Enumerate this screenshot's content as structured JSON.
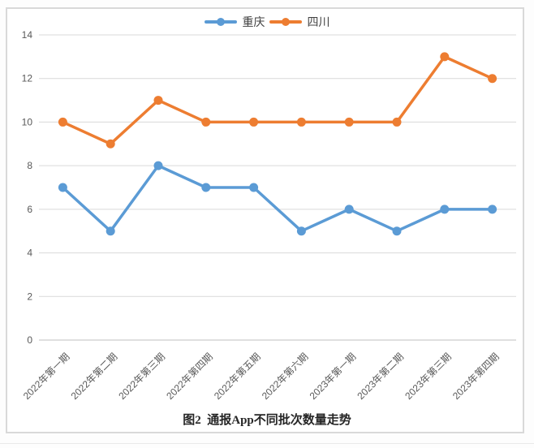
{
  "figure": {
    "caption": "图2  通报App不同批次数量走势"
  },
  "chart_data": {
    "type": "line",
    "categories": [
      "2022年第一期",
      "2022年第二期",
      "2022年第三期",
      "2022年第四期",
      "2022年第五期",
      "2022年第六期",
      "2023年第一期",
      "2023年第二期",
      "2023年第三期",
      "2023年第四期"
    ],
    "series": [
      {
        "key": "chongqing",
        "name": "重庆",
        "color": "#5B9BD5",
        "values": [
          7,
          5,
          8,
          7,
          7,
          5,
          6,
          5,
          6,
          6
        ]
      },
      {
        "key": "sichuan",
        "name": "四川",
        "color": "#ED7D31",
        "values": [
          10,
          9,
          11,
          10,
          10,
          10,
          10,
          10,
          13,
          12
        ]
      }
    ],
    "title": "",
    "xlabel": "",
    "ylabel": "",
    "ylim": [
      0,
      14
    ],
    "ytick_step": 2,
    "yticks": [
      0,
      2,
      4,
      6,
      8,
      10,
      12,
      14
    ],
    "grid": true,
    "legend_position": "top",
    "marker": "circle",
    "x_label_rotation_deg": -45
  },
  "colors": {
    "gridline": "#d9d9d9",
    "baseline_axis": "#bfbfbf",
    "tick_text": "#595959",
    "frame_border": "#d9d9d9",
    "background": "#ffffff"
  }
}
